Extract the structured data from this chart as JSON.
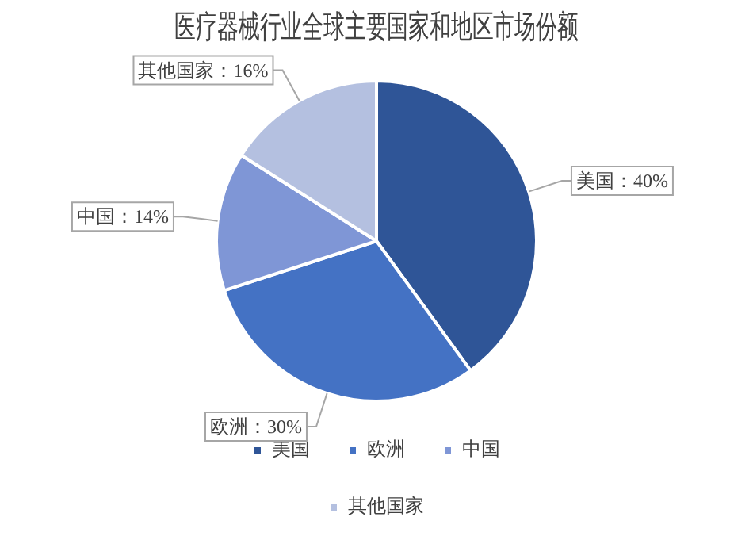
{
  "chart_data": {
    "type": "pie",
    "title": "医疗器械行业全球主要国家和地区市场份额",
    "categories": [
      "美国",
      "欧洲",
      "中国",
      "其他国家"
    ],
    "values": [
      40,
      30,
      14,
      16
    ],
    "colors": [
      "#2f5597",
      "#4472c4",
      "#7f96d6",
      "#b4c0e0"
    ],
    "value_labels": [
      "美国：40%",
      "欧洲：30%",
      "中国：14%",
      "其他国家：16%"
    ],
    "legend": "bottom"
  }
}
